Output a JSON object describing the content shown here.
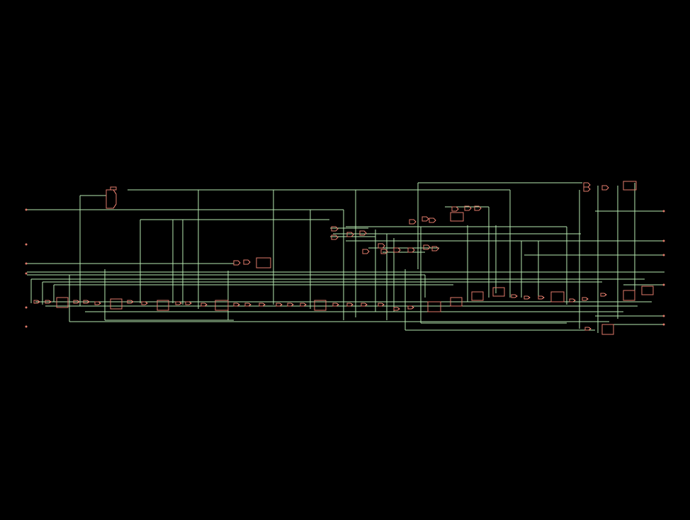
{
  "view": {
    "background": "#000000",
    "wire_color": "#b6e8b0",
    "gate_color": "#e07a6a"
  },
  "legend_text": []
}
